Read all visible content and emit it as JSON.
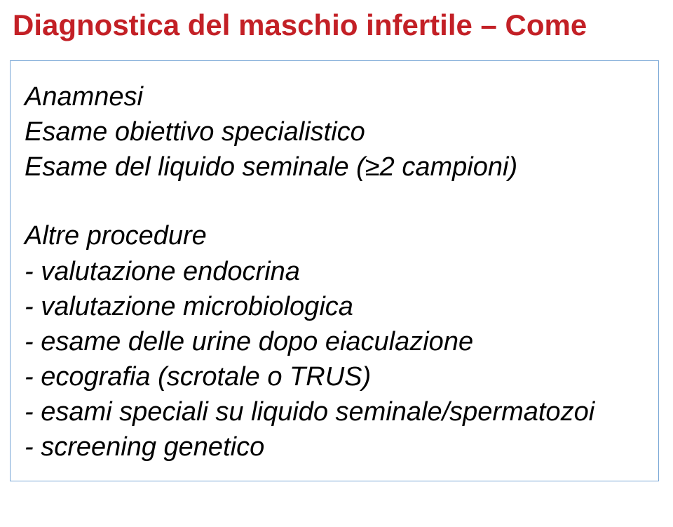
{
  "title": "Diagnostica del maschio infertile – Come",
  "box": {
    "line1": "Anamnesi",
    "line2": "Esame obiettivo specialistico",
    "line3_prefix": "Esame del liquido seminale (",
    "line3_ge": "≥",
    "line3_suffix": "2 campioni)",
    "heading2": "Altre procedure",
    "item1": "- valutazione endocrina",
    "item2": "- valutazione microbiologica",
    "item3": "- esame delle urine dopo eiaculazione",
    "item4": "- ecografia (scrotale o TRUS)",
    "item5": "- esami speciali su liquido seminale/spermatozoi",
    "item6": "- screening genetico"
  },
  "colors": {
    "title": "#c32026",
    "border": "#7aa7d6",
    "text": "#000000",
    "background": "#ffffff"
  },
  "typography": {
    "title_fontsize": 42,
    "body_fontsize": 38,
    "body_style": "italic",
    "title_weight": "bold"
  }
}
